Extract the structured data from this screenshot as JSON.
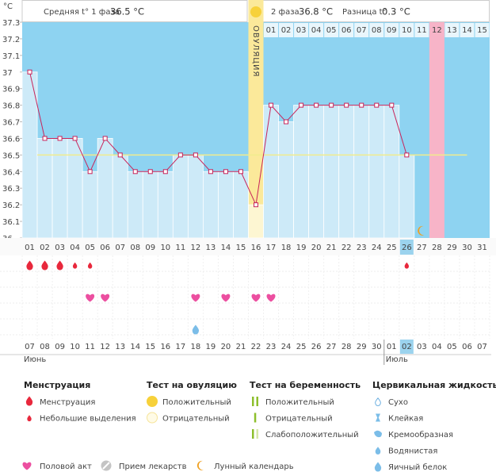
{
  "header": {
    "unit": "°C",
    "phase1_label": "Средняя t° 1 фаза",
    "phase1_value": "36.5 °C",
    "phase2_label": "2 фаза",
    "phase2_value": "36.8 °C",
    "diff_label": "Разница t°",
    "diff_value": "0.3 °C"
  },
  "chart_data": {
    "type": "line",
    "categories": [
      "01",
      "02",
      "03",
      "04",
      "05",
      "06",
      "07",
      "08",
      "09",
      "10",
      "11",
      "12",
      "13",
      "14",
      "15",
      "16",
      "17",
      "18",
      "19",
      "20",
      "21",
      "22",
      "23",
      "24",
      "25",
      "26",
      "27",
      "28",
      "29",
      "30",
      "31"
    ],
    "values": [
      37,
      36.6,
      36.6,
      36.6,
      36.4,
      36.6,
      36.5,
      36.4,
      36.4,
      36.4,
      36.5,
      36.5,
      36.4,
      36.4,
      36.4,
      36.2,
      36.8,
      36.7,
      36.8,
      36.8,
      36.8,
      36.8,
      36.8,
      36.8,
      36.8,
      36.5,
      null,
      null,
      null,
      null,
      null
    ],
    "ylim": [
      36,
      37.3
    ],
    "yticks": [
      36,
      36.1,
      36.2,
      36.3,
      36.4,
      36.5,
      36.6,
      36.7,
      36.8,
      36.9,
      37,
      37.1,
      37.2,
      37.3
    ],
    "color": "#c8245a",
    "fill": "#cdeaf8",
    "background": "#8ed3f1",
    "coverline": 36.5,
    "coverline_color": "#f1ec8c",
    "today_index": 25,
    "ovulation": {
      "label": "ОВУЛЯЦИЯ",
      "index": 15
    },
    "expected_period_index": 27,
    "phase2_start_index": 16,
    "phase2_days": [
      "01",
      "02",
      "03",
      "04",
      "05",
      "06",
      "07",
      "08",
      "09",
      "10",
      "11",
      "12",
      "13",
      "14",
      "15"
    ],
    "moon_index": 26
  },
  "markers": {
    "menstruation_heavy": [
      0,
      1,
      2
    ],
    "menstruation_light": [
      3,
      4,
      25
    ],
    "intercourse": [
      4,
      5,
      11,
      13,
      15,
      16
    ],
    "egg_white": [
      11
    ]
  },
  "calendar": {
    "dates": [
      "07",
      "08",
      "09",
      "10",
      "11",
      "12",
      "13",
      "14",
      "15",
      "16",
      "17",
      "18",
      "19",
      "20",
      "21",
      "22",
      "23",
      "24",
      "25",
      "26",
      "27",
      "28",
      "29",
      "30",
      "01",
      "02",
      "03",
      "04",
      "05",
      "06",
      "07"
    ],
    "weekend": [
      false,
      true,
      true,
      false,
      false,
      false,
      false,
      false,
      true,
      true,
      false,
      false,
      false,
      false,
      false,
      true,
      true,
      false,
      false,
      false,
      false,
      false,
      true,
      true,
      false,
      false,
      false,
      false,
      false,
      true,
      true
    ],
    "months": [
      {
        "label": "Июнь",
        "index": 0
      },
      {
        "label": "Июль",
        "index": 24
      }
    ]
  },
  "legend": {
    "sections": [
      {
        "title": "Менструация",
        "items": [
          {
            "label": "Менструация",
            "icon": "drop-big"
          },
          {
            "label": "Небольшие выделения",
            "icon": "drop-small"
          }
        ]
      },
      {
        "title": "Тест на овуляцию",
        "items": [
          {
            "label": "Положительный",
            "icon": "circle-full"
          },
          {
            "label": "Отрицательный",
            "icon": "circle-empty"
          }
        ]
      },
      {
        "title": "Тест на беременность",
        "items": [
          {
            "label": "Положительный",
            "icon": "bars-two"
          },
          {
            "label": "Отрицательный",
            "icon": "bars-one"
          },
          {
            "label": "Слабоположительный",
            "icon": "bars-weak"
          }
        ]
      },
      {
        "title": "Цервикальная жидкость",
        "items": [
          {
            "label": "Сухо",
            "icon": "fluid-dry"
          },
          {
            "label": "Клейкая",
            "icon": "fluid-sticky"
          },
          {
            "label": "Кремообразная",
            "icon": "fluid-creamy"
          },
          {
            "label": "Водянистая",
            "icon": "fluid-watery"
          },
          {
            "label": "Яичный белок",
            "icon": "fluid-egg"
          }
        ]
      }
    ],
    "extra": [
      {
        "label": "Половой акт",
        "icon": "heart"
      },
      {
        "label": "Прием лекарств",
        "icon": "pill"
      },
      {
        "label": "Лунный календарь",
        "icon": "moon"
      }
    ]
  }
}
